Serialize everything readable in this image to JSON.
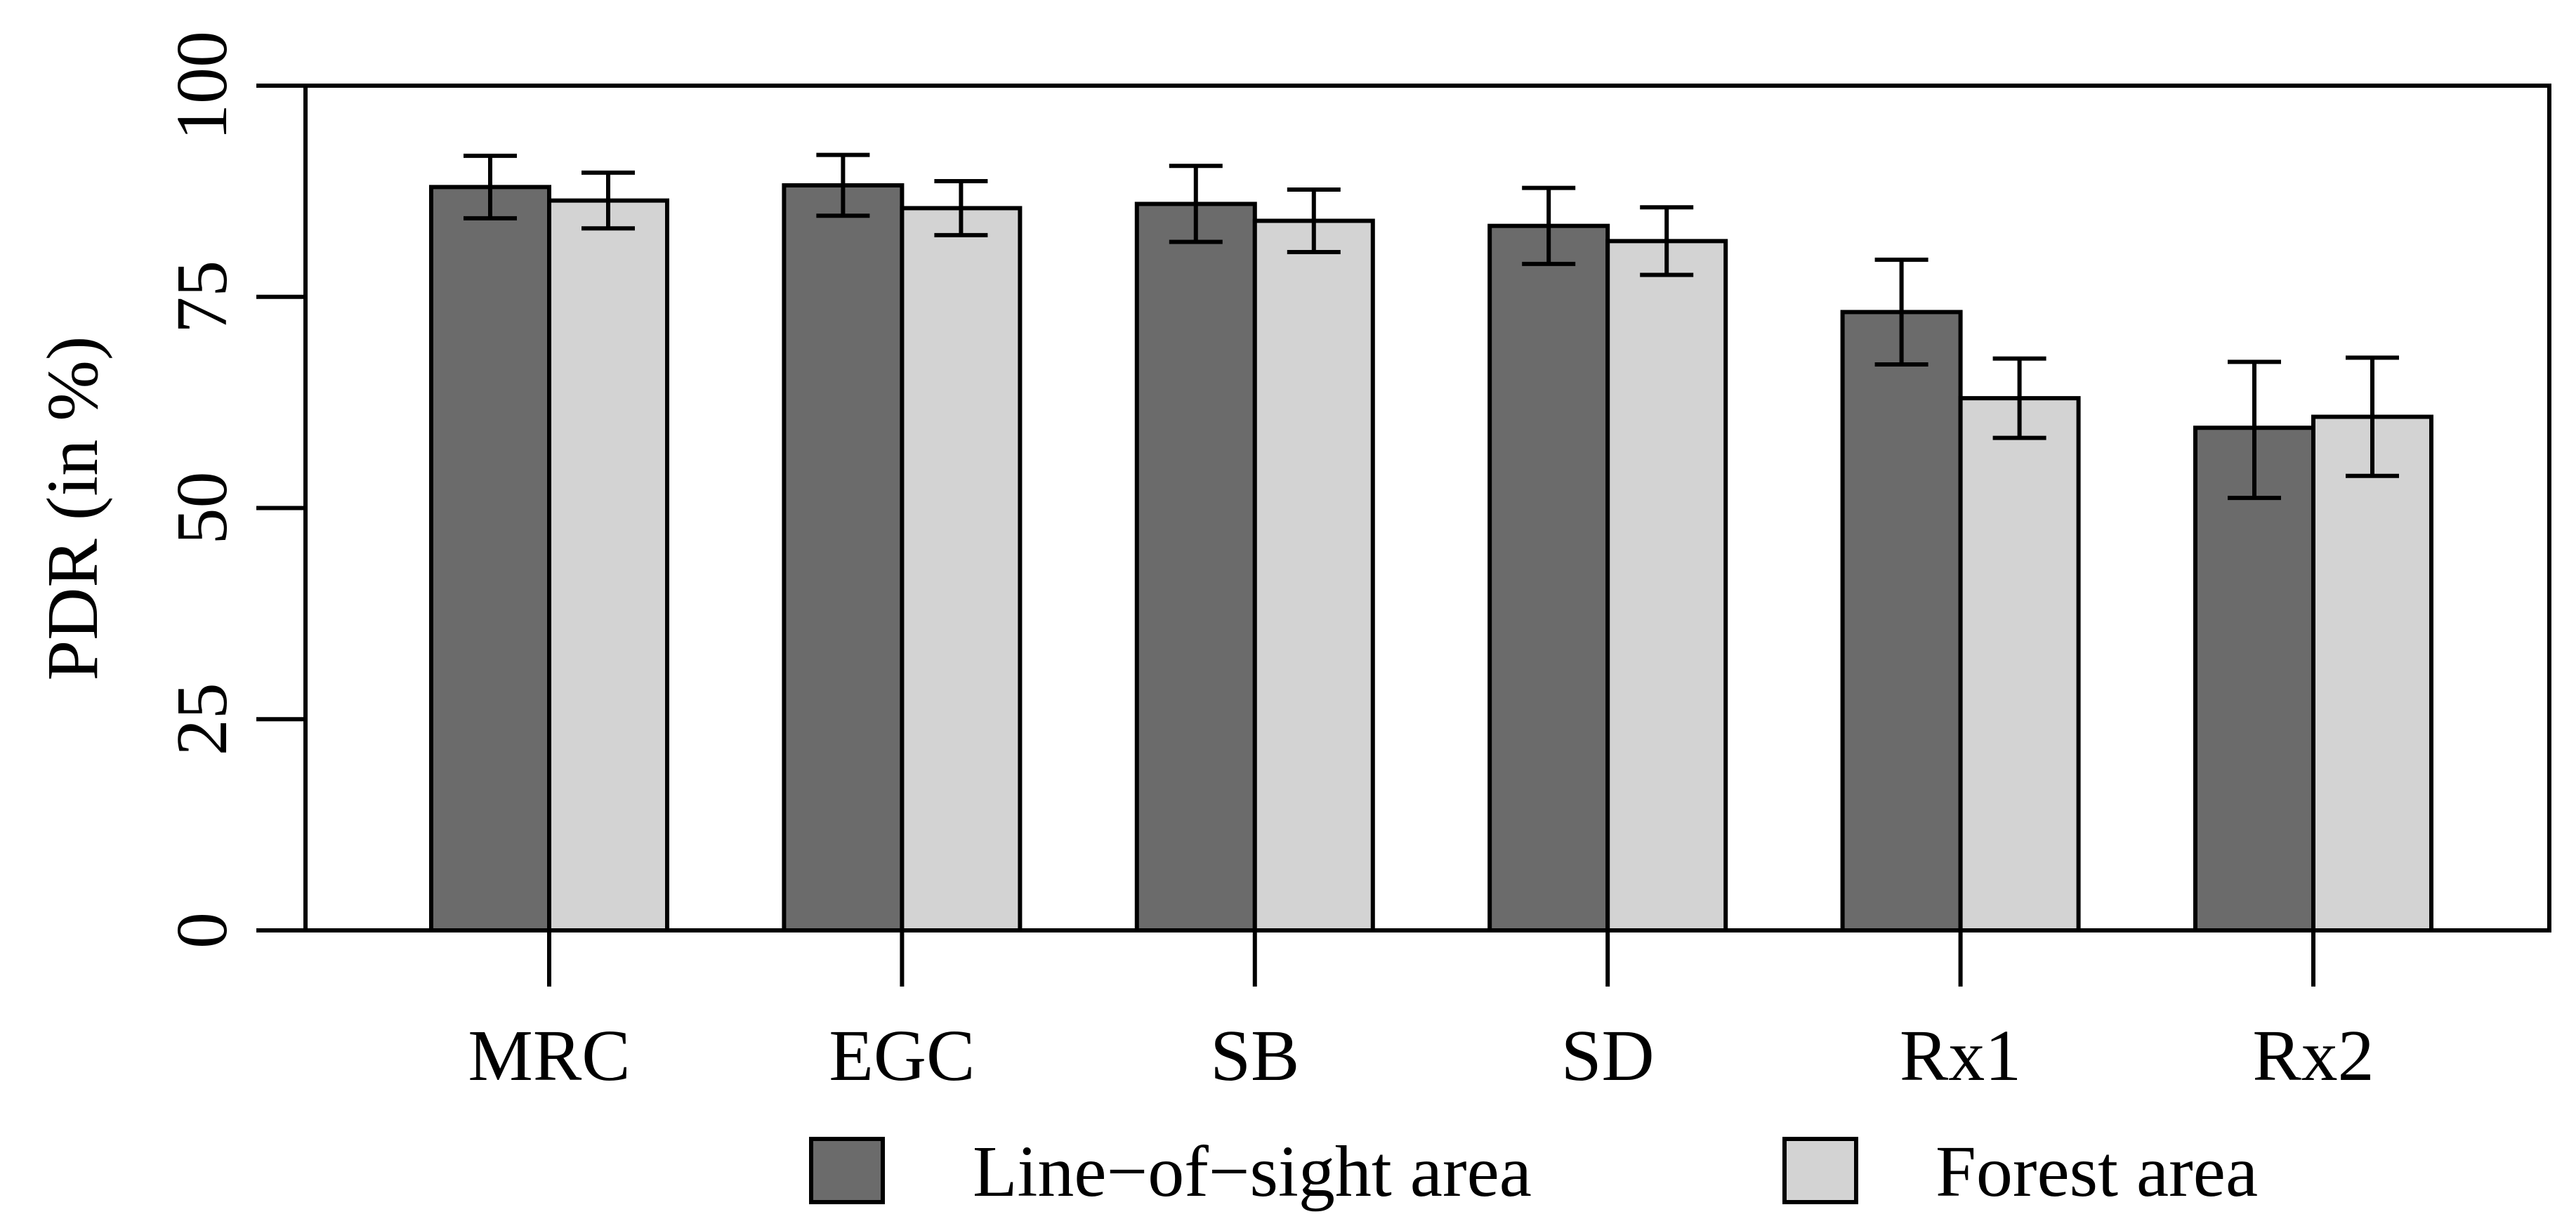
{
  "colors": {
    "los": "#6b6b6b",
    "forest": "#d3d3d3",
    "stroke": "#000000",
    "background": "#ffffff"
  },
  "chart_data": {
    "type": "bar",
    "title": "",
    "xlabel": "",
    "ylabel": "PDR (in %)",
    "ylim": [
      0,
      100
    ],
    "yticks": [
      "0",
      "25",
      "50",
      "75",
      "100"
    ],
    "categories": [
      "MRC",
      "EGC",
      "SB",
      "SD",
      "Rx1",
      "Rx2"
    ],
    "series": [
      {
        "name": "Line−of−sight area",
        "values": [
          88,
          88.2,
          86,
          83.4,
          73.2,
          59.5
        ],
        "err_low": [
          84.3,
          84.6,
          81.5,
          78.9,
          67,
          51.2
        ],
        "err_high": [
          91.7,
          91.8,
          90.5,
          87.9,
          79.4,
          67.3
        ]
      },
      {
        "name": "Forest area",
        "values": [
          86.4,
          85.5,
          84,
          81.6,
          63,
          60.8
        ],
        "err_low": [
          83.1,
          82.3,
          80.3,
          77.6,
          58.3,
          53.8
        ],
        "err_high": [
          89.7,
          88.7,
          87.7,
          85.6,
          67.7,
          67.8
        ]
      }
    ],
    "legend": {
      "position": "bottom",
      "entries": [
        "Line−of−sight area",
        "Forest area"
      ]
    }
  }
}
